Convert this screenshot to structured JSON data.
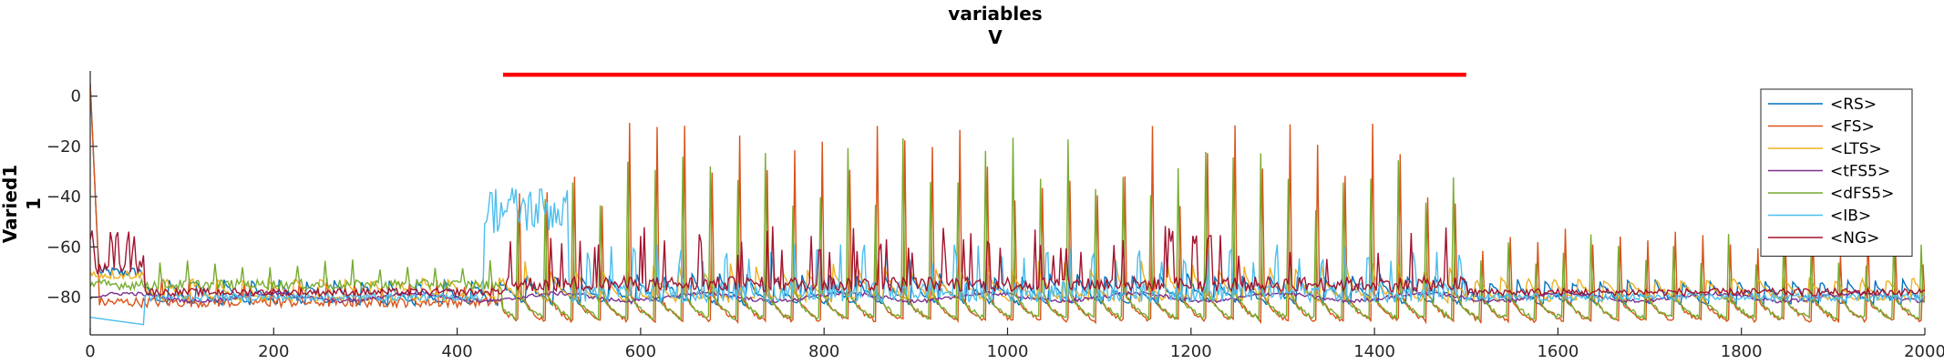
{
  "chart_data": {
    "type": "line",
    "title": "variables",
    "subtitle": "V",
    "ylabel_line1": "Varied1",
    "ylabel_line2": "1",
    "xlabel": "",
    "xlim": [
      0,
      2000
    ],
    "ylim": [
      -95,
      10
    ],
    "xticks": [
      0,
      200,
      400,
      600,
      800,
      1000,
      1200,
      1400,
      1600,
      1800,
      2000
    ],
    "yticks": [
      -80,
      -60,
      -40,
      -20,
      0
    ],
    "grid": false,
    "legend_position": "top-right",
    "stimulus_bar": {
      "x": [
        450,
        1500
      ],
      "y": 8.5,
      "color": "#ff0000"
    },
    "series": [
      {
        "name": "<RS>",
        "color": "#0072bd",
        "baseline": -79,
        "spike_peak": -62,
        "period": 30,
        "phase": 5,
        "offset_start": 60,
        "early_level": -70
      },
      {
        "name": "<FS>",
        "color": "#d95319",
        "baseline": -86,
        "spike_peak": -10,
        "period": 30,
        "phase": 12,
        "offset_start": 450,
        "early_level": -82
      },
      {
        "name": "<LTS>",
        "color": "#edb120",
        "baseline": -78,
        "spike_peak": -65,
        "period": 28,
        "phase": 2,
        "offset_start": 60,
        "early_level": -71
      },
      {
        "name": "<tFS5>",
        "color": "#7e2f8e",
        "baseline": -80,
        "spike_peak": -78,
        "period": 40,
        "phase": 0,
        "offset_start": 0,
        "early_level": -82
      },
      {
        "name": "<dFS5>",
        "color": "#77ac30",
        "baseline": -85,
        "spike_peak": -15,
        "period": 30,
        "phase": 14,
        "offset_start": 450,
        "early_level": -75
      },
      {
        "name": "<IB>",
        "color": "#4dbeee",
        "baseline": -78,
        "spike_peak": -68,
        "period": 25,
        "phase": 8,
        "offset_start": 430,
        "early_level": -88
      },
      {
        "name": "<NG>",
        "color": "#a2142f",
        "baseline": -76,
        "spike_peak": -66,
        "period": 6,
        "phase": 0,
        "offset_start": 0,
        "early_level": -62
      }
    ]
  }
}
